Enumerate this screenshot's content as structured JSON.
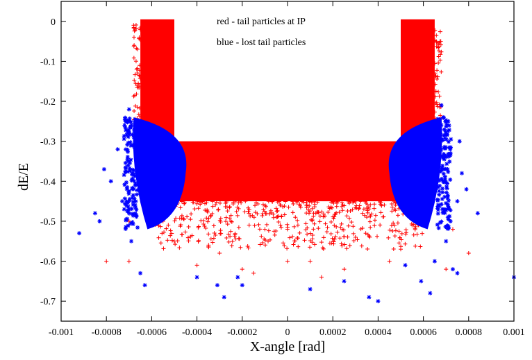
{
  "chart_data": {
    "type": "scatter",
    "title": "",
    "xlabel": "X-angle [rad]",
    "ylabel": "dE/E",
    "xlim": [
      -0.001,
      0.001
    ],
    "ylim": [
      -0.75,
      0.05
    ],
    "x_ticks": [
      "-0.001",
      "-0.0008",
      "-0.0006",
      "-0.0004",
      "-0.0002",
      "0",
      "0.0002",
      "0.0004",
      "0.0006",
      "0.0008",
      "0.001"
    ],
    "x_tick_values": [
      -0.001,
      -0.0008,
      -0.0006,
      -0.0004,
      -0.0002,
      0,
      0.0002,
      0.0004,
      0.0006,
      0.0008,
      0.001
    ],
    "y_ticks": [
      "0",
      "-0.1",
      "-0.2",
      "-0.3",
      "-0.4",
      "-0.5",
      "-0.6",
      "-0.7"
    ],
    "y_tick_values": [
      0,
      -0.1,
      -0.2,
      -0.3,
      -0.4,
      -0.5,
      -0.6,
      -0.7
    ],
    "grid": false,
    "annotations": [
      "red - tail particles at IP",
      "blue - lost tail particles"
    ],
    "series": [
      {
        "marker": "plus",
        "color": "#ff0000",
        "regions": [
          {
            "x": [
              -0.00065,
              -0.0005
            ],
            "y": [
              -0.3,
              0.005
            ]
          },
          {
            "x": [
              0.0005,
              0.00065
            ],
            "y": [
              -0.3,
              0.005
            ]
          },
          {
            "x": [
              -0.0006,
              0.0006
            ],
            "y": [
              -0.45,
              -0.3
            ]
          }
        ],
        "sample_points": [
          [
            -0.00062,
            -0.05
          ],
          [
            -0.00055,
            -0.12
          ],
          [
            -0.0006,
            -0.2
          ],
          [
            -0.00063,
            -0.26
          ],
          [
            0.00058,
            -0.08
          ],
          [
            0.00055,
            -0.15
          ],
          [
            0.0006,
            -0.22
          ],
          [
            0.00062,
            -0.27
          ],
          [
            -0.0005,
            -0.55
          ],
          [
            -0.0003,
            -0.58
          ],
          [
            -0.0001,
            -0.52
          ],
          [
            0.0001,
            -0.6
          ],
          [
            0.0003,
            -0.54
          ],
          [
            0.0005,
            -0.57
          ],
          [
            -0.0007,
            -0.6
          ],
          [
            0.0007,
            -0.62
          ],
          [
            -0.0008,
            -0.6
          ],
          [
            0.0008,
            -0.58
          ],
          [
            -0.00015,
            -0.63
          ],
          [
            0.00025,
            -0.62
          ],
          [
            -0.0004,
            -0.61
          ],
          [
            0.00045,
            -0.6
          ],
          [
            0,
            -0.6
          ],
          [
            -0.00025,
            -0.5
          ],
          [
            0.00035,
            -0.49
          ],
          [
            -0.00055,
            -0.5
          ],
          [
            0.00055,
            -0.51
          ],
          [
            -0.0002,
            -0.62
          ],
          [
            0.00015,
            -0.64
          ],
          [
            -0.0007,
            -0.5
          ],
          [
            0.00073,
            -0.52
          ]
        ]
      },
      {
        "marker": "star",
        "color": "#0000ff",
        "regions": [
          {
            "x": [
              -0.00068,
              -0.00045
            ],
            "y": [
              -0.52,
              -0.24
            ]
          },
          {
            "x": [
              0.00045,
              0.00068
            ],
            "y": [
              -0.52,
              -0.24
            ]
          }
        ],
        "sample_points": [
          [
            -0.00092,
            -0.53
          ],
          [
            -0.00085,
            -0.48
          ],
          [
            -0.00083,
            -0.5
          ],
          [
            -0.00081,
            -0.37
          ],
          [
            -0.00078,
            -0.4
          ],
          [
            -0.00075,
            -0.32
          ],
          [
            -0.00072,
            -0.26
          ],
          [
            -0.0007,
            -0.22
          ],
          [
            -0.00073,
            -0.45
          ],
          [
            -0.00069,
            -0.55
          ],
          [
            -0.00065,
            -0.63
          ],
          [
            -0.00063,
            -0.66
          ],
          [
            -0.0004,
            -0.64
          ],
          [
            -0.00031,
            -0.66
          ],
          [
            -0.00028,
            -0.69
          ],
          [
            -0.00022,
            -0.64
          ],
          [
            -0.0002,
            -0.66
          ],
          [
            0.0001,
            -0.67
          ],
          [
            0.00025,
            -0.65
          ],
          [
            0.00036,
            -0.69
          ],
          [
            0.0004,
            -0.7
          ],
          [
            0.00052,
            -0.61
          ],
          [
            0.00059,
            -0.65
          ],
          [
            0.00063,
            -0.68
          ],
          [
            0.00065,
            -0.6
          ],
          [
            0.0007,
            -0.55
          ],
          [
            0.00072,
            -0.5
          ],
          [
            0.00075,
            -0.45
          ],
          [
            0.00077,
            -0.38
          ],
          [
            0.00079,
            -0.42
          ],
          [
            0.00084,
            -0.48
          ],
          [
            0.00073,
            -0.62
          ],
          [
            0.00075,
            -0.63
          ],
          [
            0.001,
            -0.64
          ],
          [
            0.00068,
            -0.21
          ],
          [
            0.00071,
            -0.25
          ],
          [
            0.00076,
            -0.3
          ]
        ]
      }
    ]
  }
}
